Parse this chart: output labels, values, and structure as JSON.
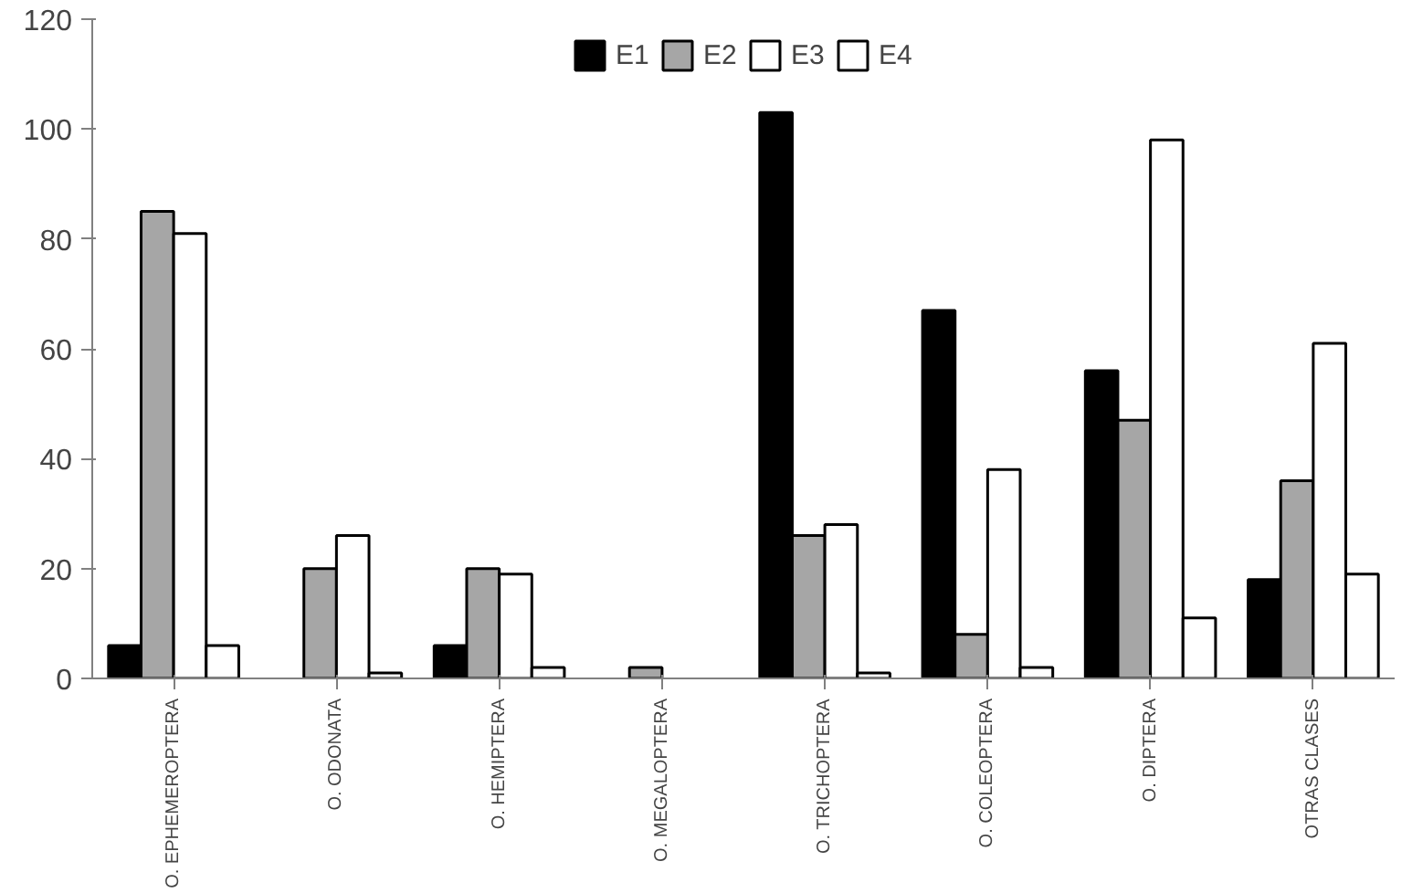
{
  "chart_data": {
    "type": "bar",
    "categories": [
      "O. EPHEMEROPTERA",
      "O. ODONATA",
      "O. HEMIPTERA",
      "O. MEGALOPTERA",
      "O. TRICHOPTERA",
      "O. COLEOPTERA",
      "O. DIPTERA",
      "OTRAS CLASES"
    ],
    "series": [
      {
        "name": "E1",
        "color": "#000000",
        "values": [
          6,
          0,
          6,
          0,
          103,
          67,
          56,
          18
        ]
      },
      {
        "name": "E2",
        "color": "#a6a6a6",
        "values": [
          85,
          20,
          20,
          2,
          26,
          8,
          47,
          36
        ]
      },
      {
        "name": "E3",
        "color": "#ffffff",
        "values": [
          81,
          26,
          19,
          0,
          28,
          38,
          98,
          61
        ]
      },
      {
        "name": "E4",
        "color": "#ffffff",
        "values": [
          6,
          1,
          2,
          0,
          1,
          2,
          11,
          19
        ]
      }
    ],
    "ylim": [
      0,
      120
    ],
    "yticks": [
      0,
      20,
      40,
      60,
      80,
      100,
      120
    ],
    "grid": false,
    "legend": "top"
  }
}
